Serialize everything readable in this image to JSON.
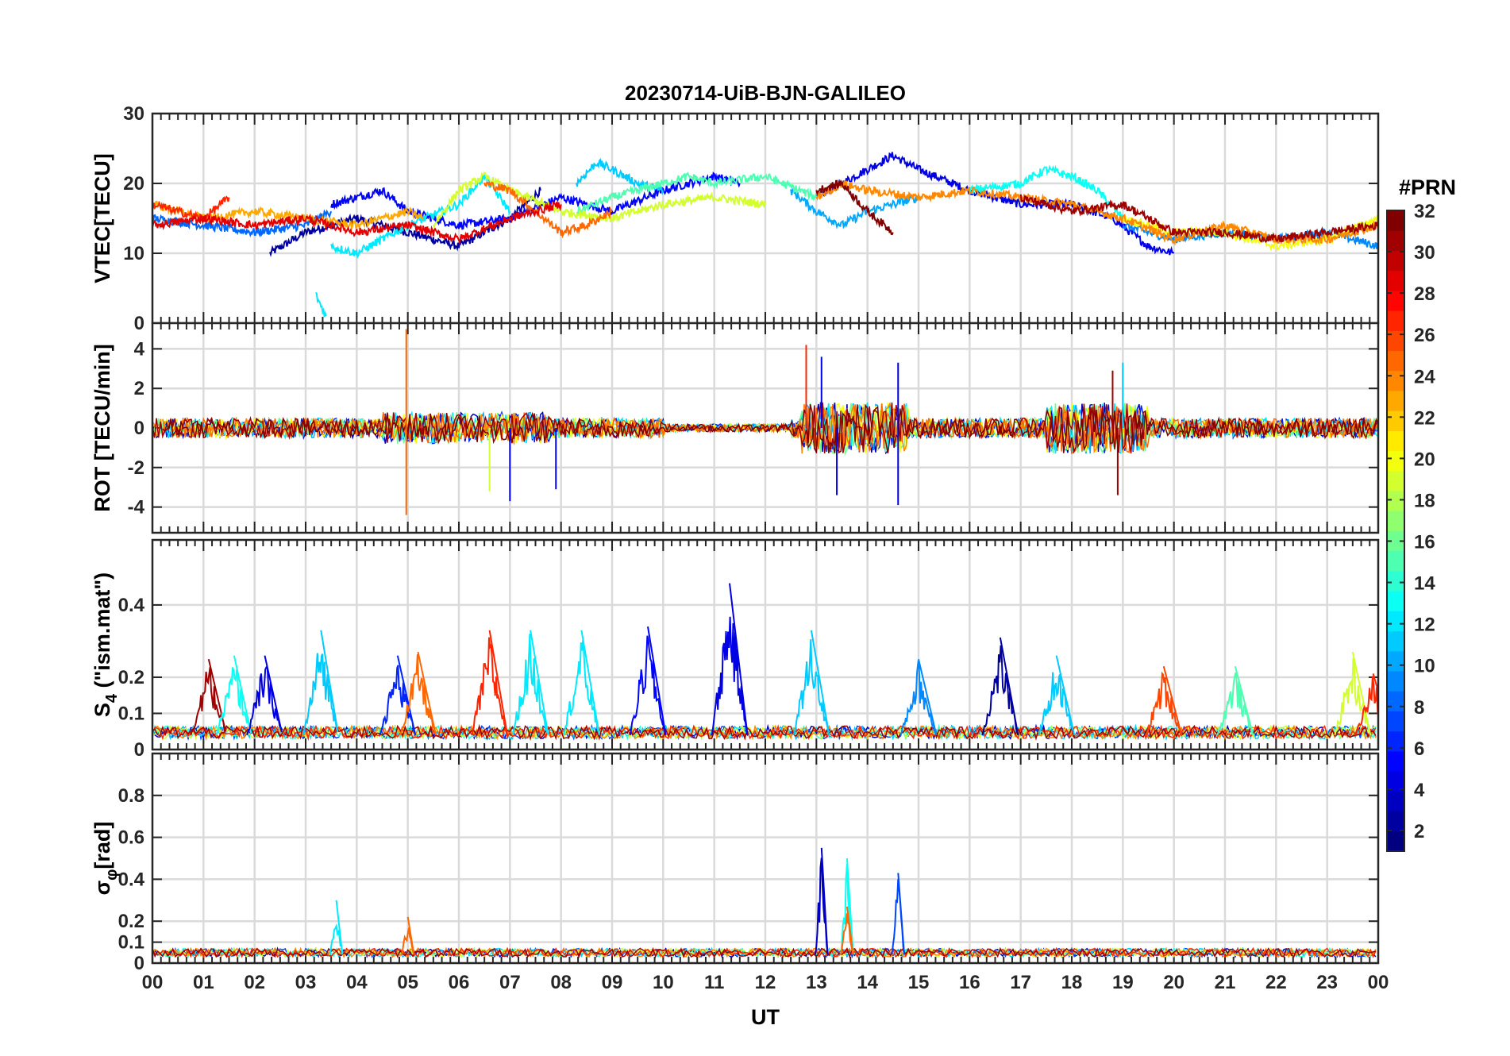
{
  "chart_data": {
    "type": "line",
    "title": "20230714-UiB-BJN-GALILEO",
    "xlabel": "UT",
    "x_ticks": [
      "00",
      "01",
      "02",
      "03",
      "04",
      "05",
      "06",
      "07",
      "08",
      "09",
      "10",
      "11",
      "12",
      "13",
      "14",
      "15",
      "16",
      "17",
      "18",
      "19",
      "20",
      "21",
      "22",
      "23",
      "00"
    ],
    "xlim": [
      0,
      24
    ],
    "grid": true,
    "colorbar": {
      "label": "#PRN",
      "range": [
        1,
        32
      ],
      "ticks": [
        "2",
        "4",
        "6",
        "8",
        "10",
        "12",
        "14",
        "16",
        "18",
        "20",
        "22",
        "24",
        "26",
        "28",
        "30",
        "32"
      ],
      "colormap": "jet"
    },
    "panels": [
      {
        "ylabel": "VTEC[TECU]",
        "ylim": [
          0,
          30
        ],
        "y_ticks": [
          "0",
          "10",
          "20",
          "30"
        ],
        "series": [
          {
            "prn": 2,
            "x": [
              2.3,
              3.0,
              4.0,
              5.0,
              6.0,
              7.0,
              7.6
            ],
            "y": [
              10,
              13,
              15,
              13,
              11,
              15,
              19
            ]
          },
          {
            "prn": 4,
            "x": [
              13.0,
              13.5,
              14.0,
              14.5,
              15.0,
              16.0,
              17.0,
              18.0,
              18.8,
              19.5,
              20.0
            ],
            "y": [
              18,
              20,
              22,
              24,
              22,
              19,
              17,
              17,
              15,
              11,
              10
            ]
          },
          {
            "prn": 5,
            "x": [
              3.5,
              4.5,
              5.0,
              6.0,
              7.0,
              8.0,
              9.0,
              10.0,
              11.0,
              11.5
            ],
            "y": [
              17,
              19,
              16,
              14,
              15,
              18,
              16,
              19,
              21,
              20
            ]
          },
          {
            "prn": 8,
            "x": [
              0,
              1,
              2,
              3,
              3.5
            ],
            "y": [
              15,
              14,
              13,
              14,
              16
            ]
          },
          {
            "prn": 9,
            "x": [
              19.0,
              20.0,
              21.0,
              22.0,
              23.0,
              24.0
            ],
            "y": [
              14,
              12,
              13,
              12,
              13,
              11
            ]
          },
          {
            "prn": 10,
            "x": [
              12.5,
              13.0,
              13.5,
              14.0,
              14.5,
              15.0
            ],
            "y": [
              19,
              16,
              14,
              16,
              17,
              18
            ]
          },
          {
            "prn": 11,
            "x": [
              8.3,
              8.7,
              9.0,
              9.5,
              10.0
            ],
            "y": [
              20,
              23,
              22,
              20,
              19
            ]
          },
          {
            "prn": 12,
            "x": [
              3.2,
              3.4
            ],
            "y": [
              4,
              1
            ]
          },
          {
            "prn": 12,
            "x": [
              3.5,
              4.0,
              4.5,
              5.0,
              6.0,
              6.5,
              7.0
            ],
            "y": [
              11,
              10,
              12,
              14,
              17,
              21,
              16
            ]
          },
          {
            "prn": 13,
            "x": [
              16.0,
              17.0,
              17.5,
              18.0,
              18.5,
              19.0
            ],
            "y": [
              19,
              20,
              22,
              21,
              19,
              15
            ]
          },
          {
            "prn": 15,
            "x": [
              8.3,
              9.0,
              10.0,
              10.5,
              11.0,
              12.0,
              13.0
            ],
            "y": [
              16,
              18,
              20,
              21,
              20,
              21,
              18
            ]
          },
          {
            "prn": 19,
            "x": [
              5.5,
              6.0,
              6.5,
              7.0,
              8.0,
              9.0,
              10.0,
              11.0,
              12.0
            ],
            "y": [
              14,
              19,
              21,
              19,
              16,
              15,
              17,
              18,
              17
            ]
          },
          {
            "prn": 20,
            "x": [
              19.0,
              20.0,
              21.0,
              22.0,
              23.0,
              24.0
            ],
            "y": [
              15,
              13,
              13,
              11,
              12,
              15
            ]
          },
          {
            "prn": 23,
            "x": [
              0,
              0.5,
              1.0,
              2.0,
              3.0,
              4.0,
              5.0,
              5.3
            ],
            "y": [
              17,
              16,
              15,
              16,
              15,
              14,
              16,
              15
            ]
          },
          {
            "prn": 24,
            "x": [
              13.0,
              13.5,
              14.0,
              15.0,
              16.0,
              17.0,
              18.0,
              19.0,
              20.0,
              21.0,
              22.0,
              23.0,
              24.0
            ],
            "y": [
              18,
              20,
              19,
              18,
              19,
              18,
              17,
              15,
              12,
              14,
              12,
              12,
              14
            ]
          },
          {
            "prn": 25,
            "x": [
              6.5,
              7.0,
              8.0,
              8.5,
              9.0
            ],
            "y": [
              20,
              19,
              13,
              14,
              16
            ]
          },
          {
            "prn": 27,
            "x": [
              0,
              0.5,
              1.0,
              1.5
            ],
            "y": [
              17,
              16,
              15,
              18
            ]
          },
          {
            "prn": 29,
            "x": [
              0,
              1.0,
              2.0,
              3.0,
              4.0,
              5.0,
              6.0,
              7.0,
              8.0
            ],
            "y": [
              14,
              15,
              14,
              15,
              13,
              14,
              12,
              15,
              17
            ]
          },
          {
            "prn": 31,
            "x": [
              17.0,
              18.0,
              19.0,
              20.0,
              21.0,
              22.0,
              23.0,
              24.0
            ],
            "y": [
              18,
              16,
              17,
              13,
              13,
              12,
              13,
              14
            ]
          },
          {
            "prn": 32,
            "x": [
              13.0,
              13.5,
              14.0,
              14.5
            ],
            "y": [
              19,
              20,
              16,
              13
            ]
          }
        ]
      },
      {
        "ylabel": "ROT [TECU/min]",
        "ylim": [
          -5.3,
          5.3
        ],
        "y_ticks": [
          "-4",
          "-2",
          "0",
          "2",
          "4"
        ],
        "spikes": [
          {
            "prn": 25,
            "x": 4.97,
            "y": 5.0
          },
          {
            "prn": 25,
            "x": 4.97,
            "y": -4.4
          },
          {
            "prn": 19,
            "x": 6.6,
            "y": -3.2
          },
          {
            "prn": 5,
            "x": 7.0,
            "y": -3.7
          },
          {
            "prn": 5,
            "x": 7.9,
            "y": -3.1
          },
          {
            "prn": 27,
            "x": 12.8,
            "y": 4.2
          },
          {
            "prn": 4,
            "x": 13.1,
            "y": 3.6
          },
          {
            "prn": 4,
            "x": 13.4,
            "y": -3.4
          },
          {
            "prn": 4,
            "x": 14.6,
            "y": 3.3
          },
          {
            "prn": 4,
            "x": 14.6,
            "y": -3.9
          },
          {
            "prn": 31,
            "x": 18.8,
            "y": 2.9
          },
          {
            "prn": 31,
            "x": 18.9,
            "y": -3.4
          },
          {
            "prn": 11,
            "x": 19.0,
            "y": 3.3
          }
        ]
      },
      {
        "ylabel": "S4 (\"ism.mat\")",
        "ylabel_main": "S",
        "ylabel_sub": "4",
        "ylabel_rest": " (\"ism.mat\")",
        "ylim": [
          0,
          0.58
        ],
        "y_ticks": [
          "0",
          "0.1",
          "0.2",
          "0.4"
        ],
        "y_tick_values": [
          0,
          0.1,
          0.2,
          0.4
        ],
        "spikes": [
          {
            "prn": 31,
            "x": 1.1,
            "y": 0.25
          },
          {
            "prn": 13,
            "x": 1.6,
            "y": 0.26
          },
          {
            "prn": 4,
            "x": 2.2,
            "y": 0.26
          },
          {
            "prn": 11,
            "x": 3.3,
            "y": 0.33
          },
          {
            "prn": 6,
            "x": 4.8,
            "y": 0.26
          },
          {
            "prn": 25,
            "x": 5.2,
            "y": 0.27
          },
          {
            "prn": 27,
            "x": 6.6,
            "y": 0.33
          },
          {
            "prn": 12,
            "x": 7.4,
            "y": 0.33
          },
          {
            "prn": 12,
            "x": 8.4,
            "y": 0.33
          },
          {
            "prn": 5,
            "x": 9.7,
            "y": 0.34
          },
          {
            "prn": 4,
            "x": 11.3,
            "y": 0.46
          },
          {
            "prn": 11,
            "x": 12.9,
            "y": 0.33
          },
          {
            "prn": 9,
            "x": 15.0,
            "y": 0.25
          },
          {
            "prn": 2,
            "x": 16.6,
            "y": 0.31
          },
          {
            "prn": 11,
            "x": 17.7,
            "y": 0.26
          },
          {
            "prn": 26,
            "x": 19.8,
            "y": 0.23
          },
          {
            "prn": 15,
            "x": 21.2,
            "y": 0.23
          },
          {
            "prn": 19,
            "x": 23.5,
            "y": 0.27
          },
          {
            "prn": 27,
            "x": 23.9,
            "y": 0.21
          }
        ]
      },
      {
        "ylabel": "σφ[rad]",
        "ylabel_main": "σ",
        "ylabel_sub": "φ",
        "ylabel_rest": "[rad]",
        "ylim": [
          0,
          1.0
        ],
        "y_ticks": [
          "0",
          "0.1",
          "0.2",
          "0.4",
          "0.6",
          "0.8"
        ],
        "y_tick_values": [
          0,
          0.1,
          0.2,
          0.4,
          0.6,
          0.8
        ],
        "spikes": [
          {
            "prn": 12,
            "x": 3.6,
            "y": 0.3
          },
          {
            "prn": 25,
            "x": 5.0,
            "y": 0.22
          },
          {
            "prn": 3,
            "x": 13.1,
            "y": 0.55
          },
          {
            "prn": 13,
            "x": 13.6,
            "y": 0.5
          },
          {
            "prn": 25,
            "x": 13.6,
            "y": 0.27
          },
          {
            "prn": 7,
            "x": 14.6,
            "y": 0.43
          }
        ]
      }
    ]
  }
}
